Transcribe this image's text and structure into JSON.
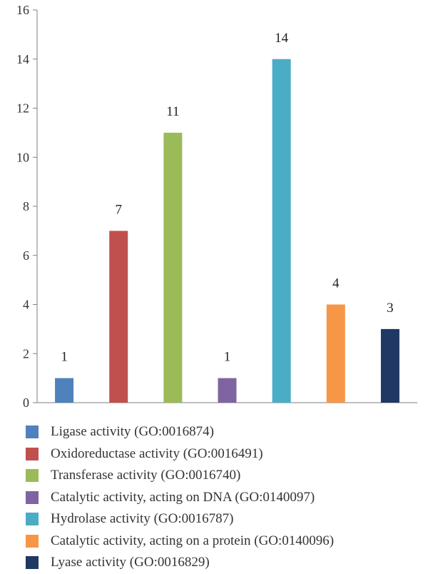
{
  "chart_data": {
    "type": "bar",
    "categories": [
      "Ligase activity (GO:0016874)",
      "Oxidoreductase activity (GO:0016491)",
      "Transferase activity (GO:0016740)",
      "Catalytic activity, acting on DNA (GO:0140097)",
      "Hydrolase activity (GO:0016787)",
      "Catalytic activity, acting on a protein (GO:0140096)",
      "Lyase activity (GO:0016829)"
    ],
    "values": [
      1,
      7,
      11,
      1,
      14,
      4,
      3
    ],
    "colors": [
      "#4f81bd",
      "#c0504d",
      "#9bbb59",
      "#8064a2",
      "#4bacc6",
      "#f79646",
      "#1f3864"
    ],
    "ylim": [
      0,
      16
    ],
    "yticks": [
      "0",
      "2",
      "4",
      "6",
      "8",
      "10",
      "12",
      "14",
      "16"
    ],
    "data_labels": [
      "1",
      "7",
      "11",
      "1",
      "14",
      "4",
      "3"
    ],
    "legend_position": "bottom",
    "grid": false,
    "title": "",
    "xlabel": "",
    "ylabel": ""
  }
}
